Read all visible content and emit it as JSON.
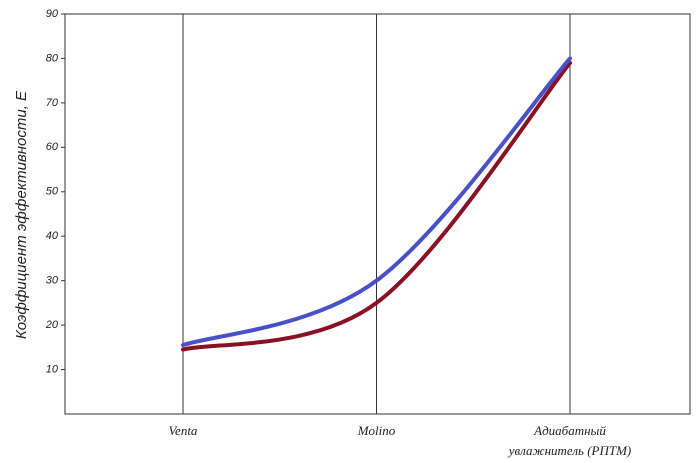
{
  "chart_data": {
    "type": "line",
    "ylabel": "Коэффициент эффективности, Е",
    "categories": [
      "Venta",
      "Molino",
      "Адиабатный увлажнитель (РПТМ)"
    ],
    "series": [
      {
        "color": "#4a50c8",
        "values": [
          15.5,
          30,
          80
        ]
      },
      {
        "color": "#8a1024",
        "values": [
          14.5,
          25,
          79
        ]
      }
    ],
    "ylim": [
      0,
      90
    ],
    "yticks": [
      10,
      20,
      30,
      40,
      50,
      60,
      70,
      80,
      90
    ],
    "grid": "x"
  }
}
